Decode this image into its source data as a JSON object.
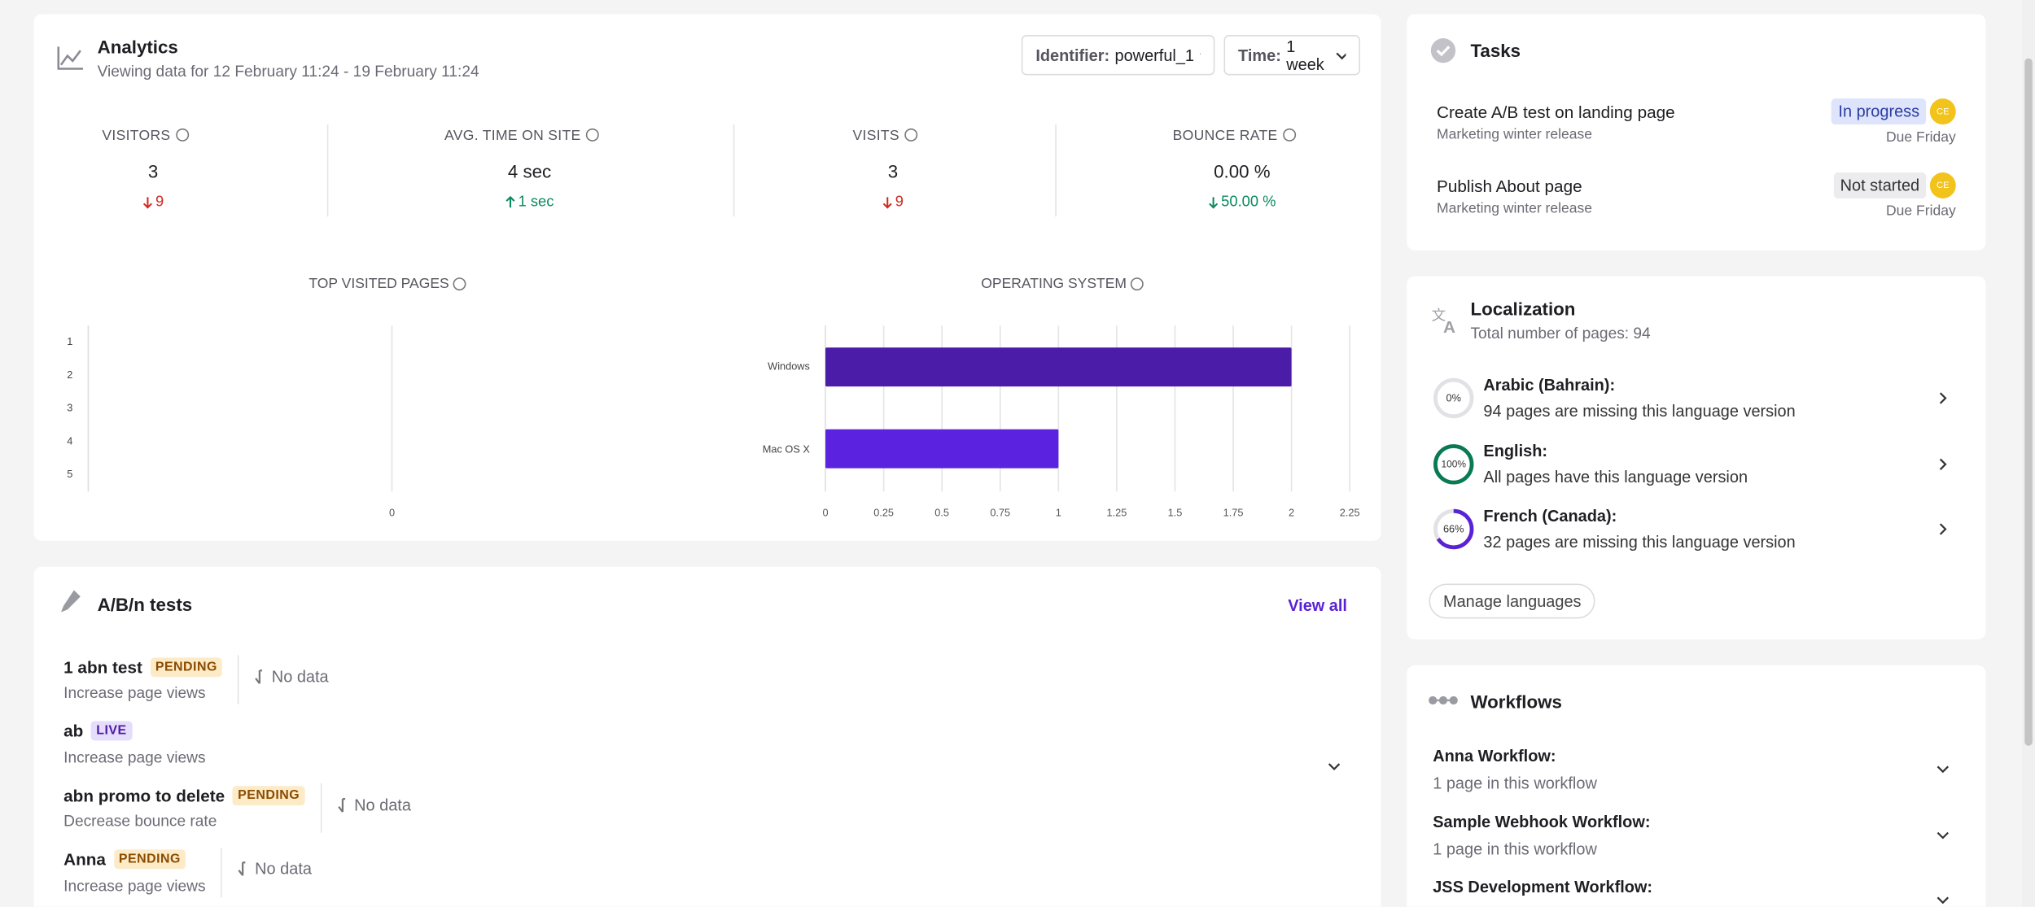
{
  "analytics": {
    "title": "Analytics",
    "subtitle": "Viewing data for 12 February 11:24 - 19 February 11:24",
    "identifier": {
      "label": "Identifier:",
      "value": "powerful_1"
    },
    "time": {
      "label": "Time:",
      "value": "1 week"
    },
    "metrics": [
      {
        "label": "VISITORS",
        "value": "3",
        "change": "9",
        "direction": "down",
        "color": "#d02b20"
      },
      {
        "label": "AVG. TIME ON SITE",
        "value": "4 sec",
        "change": "1 sec",
        "direction": "up",
        "color": "#0a8a5f"
      },
      {
        "label": "VISITS",
        "value": "3",
        "change": "9",
        "direction": "down",
        "color": "#d02b20"
      },
      {
        "label": "BOUNCE RATE",
        "value": "0.00 %",
        "change": "50.00 %",
        "direction": "down",
        "color": "#0a8a5f"
      }
    ],
    "top_pages_chart": {
      "type": "bar",
      "orientation": "horizontal",
      "title": "TOP VISITED PAGES",
      "categories": [
        "1",
        "2",
        "3",
        "4",
        "5"
      ],
      "xlim": [
        -1,
        1
      ],
      "xticks": [
        0
      ]
    },
    "os_chart": {
      "type": "bar",
      "orientation": "horizontal",
      "title": "OPERATING SYSTEM",
      "categories": [
        "Windows",
        "Mac OS X"
      ],
      "values": [
        2,
        1
      ],
      "colors": [
        "#4a1ca8",
        "#5b22e0"
      ],
      "xlim": [
        0,
        2.25
      ],
      "xticks": [
        0,
        0.25,
        0.5,
        0.75,
        1,
        1.25,
        1.5,
        1.75,
        2,
        2.25
      ],
      "grid": true
    }
  },
  "ab_tests": {
    "title": "A/B/n tests",
    "view_all": "View all",
    "tests": [
      {
        "name": "1 abn test",
        "status": "PENDING",
        "goal": "Increase page views",
        "result": "No data"
      },
      {
        "name": "ab",
        "status": "LIVE",
        "goal": "Increase page views"
      },
      {
        "name": "abn promo to delete",
        "status": "PENDING",
        "goal": "Decrease bounce rate",
        "result": "No data"
      },
      {
        "name": "Anna",
        "status": "PENDING",
        "goal": "Increase page views",
        "result": "No data"
      }
    ]
  },
  "tasks": {
    "title": "Tasks",
    "items": [
      {
        "title": "Create A/B test on landing page",
        "project": "Marketing winter release",
        "status": "In progress",
        "assignee": "CE",
        "due": "Due Friday"
      },
      {
        "title": "Publish About page",
        "project": "Marketing winter release",
        "status": "Not started",
        "assignee": "CE",
        "due": "Due Friday"
      }
    ]
  },
  "localization": {
    "title": "Localization",
    "subtitle": "Total number of pages: 94",
    "languages": [
      {
        "name": "Arabic (Bahrain):",
        "percent": 0,
        "percent_label": "0%",
        "description": "94 pages are missing this language version"
      },
      {
        "name": "English:",
        "percent": 100,
        "percent_label": "100%",
        "description": "All pages have this language version"
      },
      {
        "name": "French (Canada):",
        "percent": 66,
        "percent_label": "66%",
        "description": "32 pages are missing this language version"
      }
    ],
    "button": "Manage languages"
  },
  "workflows": {
    "title": "Workflows",
    "items": [
      {
        "name": "Anna Workflow:",
        "description": "1 page in this workflow"
      },
      {
        "name": "Sample Webhook Workflow:",
        "description": "1 page in this workflow"
      },
      {
        "name": "JSS Development Workflow:"
      }
    ]
  }
}
